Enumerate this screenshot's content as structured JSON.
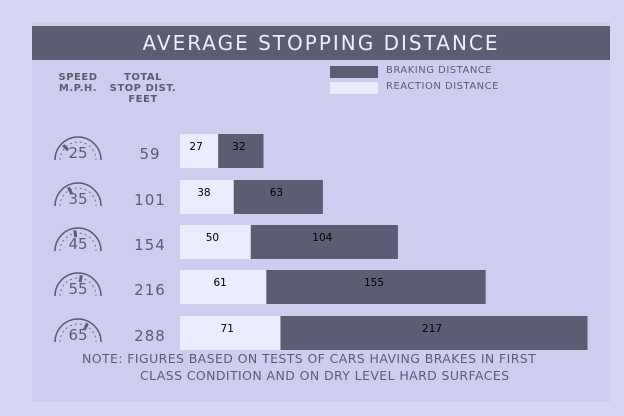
{
  "chart_data": {
    "type": "bar",
    "stacked": true,
    "orientation": "horizontal",
    "title": "AVERAGE STOPPING DISTANCE",
    "column_headers": {
      "speed": [
        "SPEED",
        "M.P.H."
      ],
      "total": [
        "TOTAL",
        "STOP DIST.",
        "FEET"
      ]
    },
    "speeds": [
      "25",
      "35",
      "45",
      "55",
      "65"
    ],
    "totals": [
      "59",
      "101",
      "154",
      "216",
      "288"
    ],
    "series": [
      {
        "name": "REACTION DISTANCE",
        "color": "#ececff",
        "values": [
          27,
          38,
          50,
          61,
          71
        ]
      },
      {
        "name": "BRAKING DISTANCE",
        "color": "#5c5c73",
        "values": [
          32,
          63,
          104,
          155,
          217
        ]
      }
    ],
    "note": [
      "NOTE: FIGURES BASED ON TESTS OF CARS HAVING BRAKES IN FIRST",
      "CLASS CONDITION AND ON DRY LEVEL HARD SURFACES"
    ]
  },
  "colors": {
    "background": "#cdcdf0",
    "dark": "#5c5c73",
    "light": "#ececff"
  }
}
